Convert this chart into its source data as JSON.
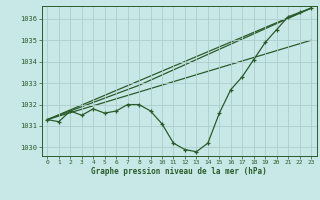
{
  "bg_color": "#c8e8e8",
  "grid_color": "#b0cccc",
  "line_color": "#2a5c2a",
  "title": "Graphe pression niveau de la mer (hPa)",
  "ylabel_vals": [
    1030,
    1031,
    1032,
    1033,
    1034,
    1035,
    1036
  ],
  "ylim": [
    1029.6,
    1036.6
  ],
  "xlim": [
    -0.5,
    23.5
  ],
  "xticks": [
    0,
    1,
    2,
    3,
    4,
    5,
    6,
    7,
    8,
    9,
    10,
    11,
    12,
    13,
    14,
    15,
    16,
    17,
    18,
    19,
    20,
    21,
    22,
    23
  ],
  "series1_x": [
    0,
    1,
    2,
    3,
    4,
    5,
    6,
    7,
    8,
    9,
    10,
    11,
    12,
    13,
    14,
    15,
    16,
    17,
    18,
    19,
    20,
    21,
    22,
    23
  ],
  "series1_y": [
    1031.3,
    1031.2,
    1031.7,
    1031.5,
    1031.8,
    1031.6,
    1031.7,
    1032.0,
    1032.0,
    1031.7,
    1031.1,
    1030.2,
    1029.9,
    1029.8,
    1030.2,
    1031.6,
    1032.7,
    1033.3,
    1034.1,
    1034.9,
    1035.5,
    1036.1,
    1036.3,
    1036.5
  ],
  "line1_x": [
    0,
    23
  ],
  "line1_y": [
    1031.3,
    1036.5
  ],
  "line2_x": [
    0,
    23
  ],
  "line2_y": [
    1031.3,
    1035.0
  ],
  "line3_x": [
    0,
    8,
    23
  ],
  "line3_y": [
    1031.3,
    1032.9,
    1036.5
  ]
}
